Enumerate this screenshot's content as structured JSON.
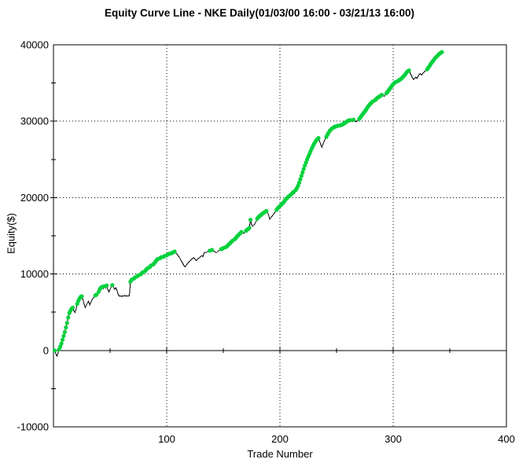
{
  "window": {
    "background": "#ffffff"
  },
  "chart_data": {
    "type": "line",
    "title": "Equity Curve Line - NKE Daily(01/03/00 16:00 - 03/21/13 16:00)",
    "xlabel": "Trade Number",
    "ylabel": "Equity($)",
    "xlim": [
      0,
      400
    ],
    "ylim": [
      -10000,
      40000
    ],
    "x_ticks": [
      100,
      200,
      300,
      400
    ],
    "x_minor_ticks": [
      50,
      150,
      250,
      350
    ],
    "y_ticks": [
      -10000,
      0,
      10000,
      20000,
      30000,
      40000
    ],
    "y_minor_ticks": [
      -5000,
      5000,
      15000,
      25000,
      35000
    ],
    "grid_x": [
      100,
      200,
      300
    ],
    "grid_y": [
      10000,
      20000,
      30000
    ],
    "grid_style": "dotted",
    "zero_line": 0,
    "line_color": "#000000",
    "marker_color": "#00D23C",
    "marker_rule": "green dot at each new equity high",
    "series": [
      {
        "name": "Equity",
        "start_trade": 1,
        "values": [
          0,
          -400,
          -750,
          -350,
          150,
          500,
          900,
          1400,
          1900,
          2400,
          3000,
          3600,
          4300,
          4900,
          5200,
          5450,
          5600,
          5200,
          4950,
          5400,
          6100,
          6500,
          6800,
          7000,
          7100,
          6700,
          6100,
          5600,
          5900,
          6200,
          6450,
          5950,
          6300,
          6600,
          6850,
          7000,
          7200,
          7300,
          7150,
          7700,
          8050,
          8200,
          8330,
          8100,
          8400,
          8150,
          8500,
          7950,
          7650,
          8000,
          8300,
          8550,
          8300,
          8000,
          8200,
          7900,
          7400,
          7100,
          7150,
          7050,
          7150,
          7100,
          7200,
          7100,
          7150,
          7100,
          7150,
          9000,
          9250,
          9150,
          9400,
          9550,
          9450,
          9700,
          9850,
          9750,
          9950,
          10100,
          10250,
          10150,
          10400,
          10600,
          10750,
          10600,
          10900,
          11100,
          11000,
          11250,
          11400,
          11600,
          11800,
          11950,
          11850,
          12050,
          12200,
          12100,
          12250,
          12350,
          12300,
          12450,
          12550,
          12650,
          12600,
          12700,
          12800,
          12850,
          12950,
          12800,
          12650,
          12400,
          12250,
          11950,
          11700,
          11450,
          11150,
          10950,
          11100,
          11300,
          11500,
          11650,
          11800,
          11950,
          12050,
          12150,
          11950,
          11750,
          11900,
          12050,
          12150,
          12300,
          12400,
          12250,
          12750,
          12850,
          12800,
          12950,
          12900,
          13050,
          13000,
          13150,
          13100,
          12950,
          12850,
          12800,
          12950,
          13050,
          13150,
          13250,
          13300,
          13400,
          13350,
          13500,
          13600,
          13750,
          13900,
          14050,
          14200,
          14350,
          14250,
          14550,
          14700,
          14900,
          15050,
          15200,
          15350,
          15500,
          15400,
          15300,
          15500,
          15650,
          15800,
          15900,
          16050,
          17100,
          16450,
          16250,
          16400,
          16600,
          16900,
          17250,
          17450,
          17600,
          17700,
          17850,
          17950,
          18050,
          18150,
          18250,
          18050,
          17750,
          17150,
          17400,
          17550,
          17750,
          17950,
          18150,
          18400,
          18600,
          18750,
          18900,
          19050,
          19200,
          19350,
          19550,
          19750,
          19900,
          20050,
          20200,
          20300,
          20450,
          20600,
          20750,
          20550,
          21000,
          21250,
          21550,
          21950,
          22400,
          22850,
          23300,
          23750,
          24200,
          24600,
          25000,
          25350,
          25700,
          26050,
          26400,
          26700,
          27000,
          27250,
          27500,
          27650,
          27800,
          27400,
          26950,
          26600,
          27000,
          27350,
          27700,
          27950,
          28250,
          28500,
          28750,
          28900,
          29050,
          29150,
          29250,
          29300,
          29350,
          29400,
          29350,
          29450,
          29500,
          29550,
          29650,
          29750,
          29850,
          29950,
          30050,
          30100,
          30150,
          30050,
          29950,
          30200,
          30100,
          29900,
          30000,
          30150,
          30300,
          30500,
          30700,
          30900,
          31100,
          31300,
          31500,
          31750,
          31950,
          32150,
          32300,
          32450,
          32600,
          32500,
          32750,
          32900,
          33050,
          33150,
          33250,
          33350,
          33450,
          33350,
          33250,
          33450,
          33650,
          33850,
          34050,
          34250,
          34450,
          34650,
          34850,
          35000,
          35100,
          35050,
          35250,
          35350,
          35450,
          35550,
          35700,
          35850,
          36000,
          36200,
          36400,
          36550,
          36650,
          36300,
          36000,
          35700,
          35450,
          35600,
          35750,
          35600,
          35900,
          36100,
          36250,
          36050,
          36200,
          36400,
          36550,
          36650,
          36800,
          37000,
          37200,
          37450,
          37650,
          37850,
          38050,
          38250,
          38400,
          38550,
          38700,
          38850,
          38950,
          39050
        ]
      }
    ]
  }
}
